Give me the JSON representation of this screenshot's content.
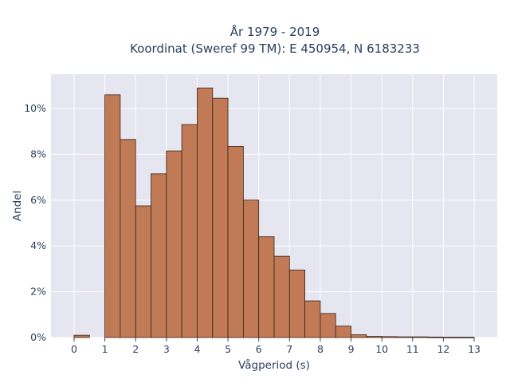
{
  "chart_data": {
    "type": "bar",
    "title_lines": [
      "År 1979 - 2019",
      "Koordinat (Sweref 99 TM): E 450954, N 6183233"
    ],
    "xlabel": "Vågperiod (s)",
    "ylabel": "Andel",
    "bin_width": 0.5,
    "bins": [
      {
        "start": 0.0,
        "value": 0.1
      },
      {
        "start": 0.5,
        "value": 0.0
      },
      {
        "start": 1.0,
        "value": 10.6
      },
      {
        "start": 1.5,
        "value": 8.65
      },
      {
        "start": 2.0,
        "value": 5.75
      },
      {
        "start": 2.5,
        "value": 7.15
      },
      {
        "start": 3.0,
        "value": 8.15
      },
      {
        "start": 3.5,
        "value": 9.3
      },
      {
        "start": 4.0,
        "value": 10.9
      },
      {
        "start": 4.5,
        "value": 10.45
      },
      {
        "start": 5.0,
        "value": 8.35
      },
      {
        "start": 5.5,
        "value": 6.0
      },
      {
        "start": 6.0,
        "value": 4.4
      },
      {
        "start": 6.5,
        "value": 3.55
      },
      {
        "start": 7.0,
        "value": 2.95
      },
      {
        "start": 7.5,
        "value": 1.6
      },
      {
        "start": 8.0,
        "value": 1.05
      },
      {
        "start": 8.5,
        "value": 0.5
      },
      {
        "start": 9.0,
        "value": 0.12
      },
      {
        "start": 9.5,
        "value": 0.05
      },
      {
        "start": 10.0,
        "value": 0.04
      },
      {
        "start": 10.5,
        "value": 0.03
      },
      {
        "start": 11.0,
        "value": 0.03
      },
      {
        "start": 11.5,
        "value": 0.02
      },
      {
        "start": 12.0,
        "value": 0.01
      },
      {
        "start": 12.5,
        "value": 0.01
      }
    ],
    "x_ticks": [
      "0",
      "1",
      "2",
      "3",
      "4",
      "5",
      "6",
      "7",
      "8",
      "9",
      "10",
      "11",
      "12",
      "13"
    ],
    "y_ticks": [
      "0%",
      "2%",
      "4%",
      "6%",
      "8%",
      "10%"
    ],
    "y_tick_values": [
      0,
      2,
      4,
      6,
      8,
      10
    ],
    "xlim": [
      -0.75,
      13.75
    ],
    "ylim": [
      0,
      11.5
    ],
    "grid": true,
    "colors": {
      "bar_fill": "#c07a55",
      "bar_stroke": "#3b2318",
      "plot_bg": "#e5e6f0",
      "grid": "#ffffff"
    }
  }
}
